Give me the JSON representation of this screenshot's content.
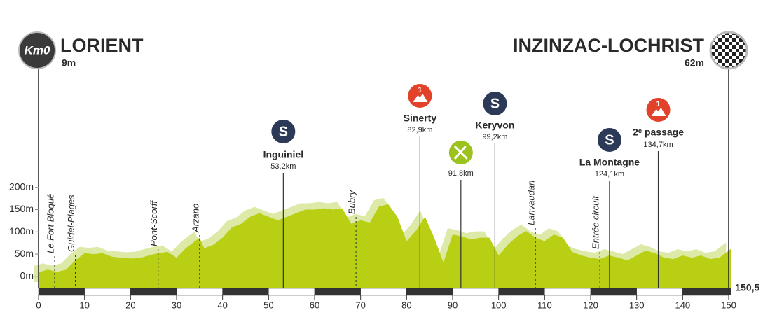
{
  "chart_data": {
    "type": "area",
    "start": {
      "badge": "Km0",
      "name": "LORIENT",
      "altitude": "9m"
    },
    "finish": {
      "name": "INZINZAC-LOCHRIST",
      "altitude": "62m"
    },
    "x": [
      0,
      2,
      4,
      6,
      8,
      10,
      12,
      14,
      16,
      18,
      20,
      22,
      24,
      26,
      28,
      30,
      32,
      34,
      35,
      36,
      38,
      40,
      42,
      44,
      46,
      48,
      50,
      52,
      54,
      56,
      58,
      60,
      62,
      64,
      66,
      68,
      70,
      72,
      74,
      76,
      78,
      80,
      82,
      84,
      86,
      88,
      90,
      92,
      94,
      96,
      98,
      100,
      102,
      104,
      106,
      108,
      110,
      112,
      114,
      116,
      118,
      120,
      122,
      124,
      126,
      128,
      130,
      132,
      134,
      136,
      138,
      140,
      142,
      144,
      146,
      148,
      150,
      150.5
    ],
    "values": [
      9,
      15,
      10,
      15,
      36,
      52,
      50,
      52,
      44,
      42,
      40,
      41,
      47,
      52,
      55,
      42,
      63,
      79,
      87,
      63,
      71,
      87,
      110,
      118,
      134,
      142,
      134,
      126,
      134,
      142,
      150,
      150,
      153,
      150,
      153,
      118,
      126,
      121,
      157,
      162,
      134,
      79,
      102,
      134,
      87,
      31,
      94,
      90,
      83,
      87,
      87,
      47,
      71,
      90,
      102,
      87,
      79,
      94,
      87,
      55,
      47,
      42,
      39,
      47,
      42,
      36,
      47,
      58,
      52,
      42,
      39,
      47,
      42,
      47,
      39,
      42,
      58,
      62
    ],
    "color": "#b8cf14",
    "shadow_color": "#dde9a6",
    "xlim": [
      0,
      150
    ],
    "ylim": [
      -27,
      250
    ],
    "xticks": [
      0,
      10,
      20,
      30,
      40,
      50,
      60,
      70,
      80,
      90,
      100,
      110,
      120,
      130,
      140,
      150
    ],
    "total_distance": {
      "value": 150.5,
      "label": "150,5"
    },
    "yticks": [
      {
        "value": 0,
        "label": "0m"
      },
      {
        "value": 50,
        "label": "50m"
      },
      {
        "value": 100,
        "label": "100m"
      },
      {
        "value": 150,
        "label": "150m"
      },
      {
        "value": 200,
        "label": "200m"
      }
    ],
    "places": [
      {
        "name": "Le Fort Bloqué",
        "km": 3.5
      },
      {
        "name": "Guidel-Plages",
        "km": 8
      },
      {
        "name": "Pont-Scorff",
        "km": 26
      },
      {
        "name": "Arzano",
        "km": 35
      },
      {
        "name": "Bubry",
        "km": 69
      },
      {
        "name": "Lanvaudan",
        "km": 108
      },
      {
        "name": "Entrée circuit",
        "km": 122
      }
    ],
    "points": [
      {
        "name": "Inguiniel",
        "distance_label": "53,2km",
        "km": 53.2,
        "kind": "sprint",
        "icon_text": "S"
      },
      {
        "name": "Sinerty",
        "distance_label": "82,9km",
        "km": 82.9,
        "kind": "climb",
        "icon_text": "1"
      },
      {
        "distance_label": "91,8km",
        "km": 91.8,
        "kind": "feed"
      },
      {
        "name": "Keryvon",
        "distance_label": "99,2km",
        "km": 99.2,
        "kind": "sprint",
        "icon_text": "S"
      },
      {
        "name": "La Montagne",
        "distance_label": "124,1km",
        "km": 124.1,
        "kind": "sprint",
        "icon_text": "S"
      },
      {
        "name": "2ᵉ passage",
        "distance_label": "134,7km",
        "km": 134.7,
        "kind": "climb",
        "icon_text": "1"
      }
    ]
  }
}
